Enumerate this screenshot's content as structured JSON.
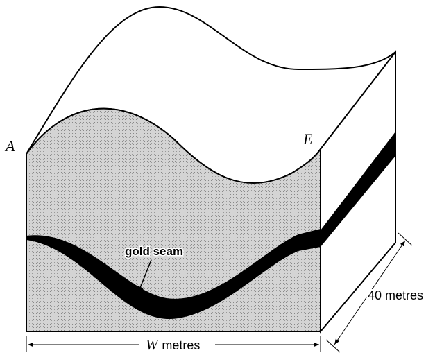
{
  "labels": {
    "a": "A",
    "e": "E",
    "gold_seam": "gold seam",
    "width_var": "W",
    "width_unit": "metres",
    "depth": "40 metres"
  }
}
